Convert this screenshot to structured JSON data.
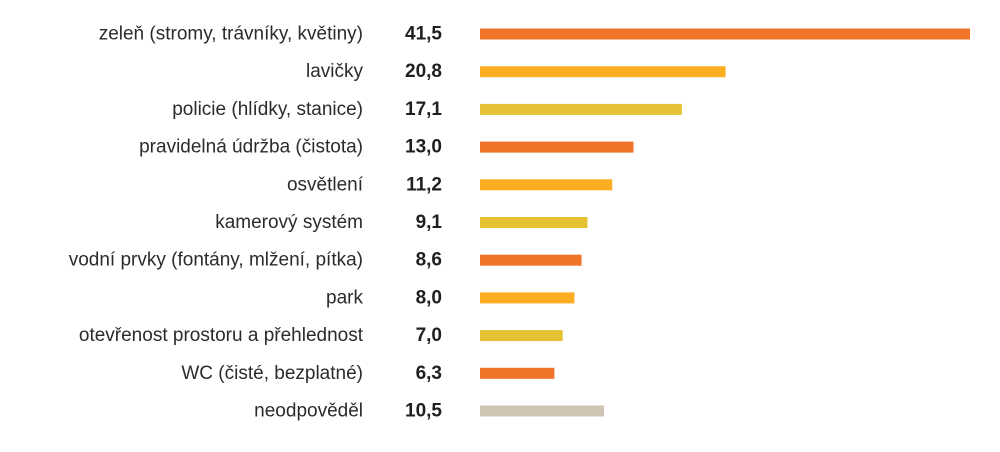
{
  "chart_data": {
    "type": "bar",
    "orientation": "horizontal",
    "title": "",
    "xlabel": "",
    "ylabel": "",
    "xlim": [
      0,
      41.5
    ],
    "grid": false,
    "legend": "none",
    "categories": [
      "zeleň (stromy, trávníky, květiny)",
      "lavičky",
      "policie (hlídky, stanice)",
      "pravidelná údržba (čistota)",
      "osvětlení",
      "kamerový systém",
      "vodní prvky (fontány, mlžení, pítka)",
      "park",
      "otevřenost prostoru a přehlednost",
      "WC (čisté, bezplatné)",
      "neodpověděl"
    ],
    "values": [
      41.5,
      20.8,
      17.1,
      13.0,
      11.2,
      9.1,
      8.6,
      8.0,
      7.0,
      6.3,
      10.5
    ],
    "value_labels": [
      "41,5",
      "20,8",
      "17,1",
      "13,0",
      "11,2",
      "9,1",
      "8,6",
      "8,0",
      "7,0",
      "6,3",
      "10,5"
    ],
    "bar_colors": [
      "#f07328",
      "#fbae22",
      "#e5c133",
      "#f07328",
      "#fbae22",
      "#e5c133",
      "#f07328",
      "#fbae22",
      "#e5c133",
      "#f07328",
      "#cfc4b3"
    ]
  }
}
